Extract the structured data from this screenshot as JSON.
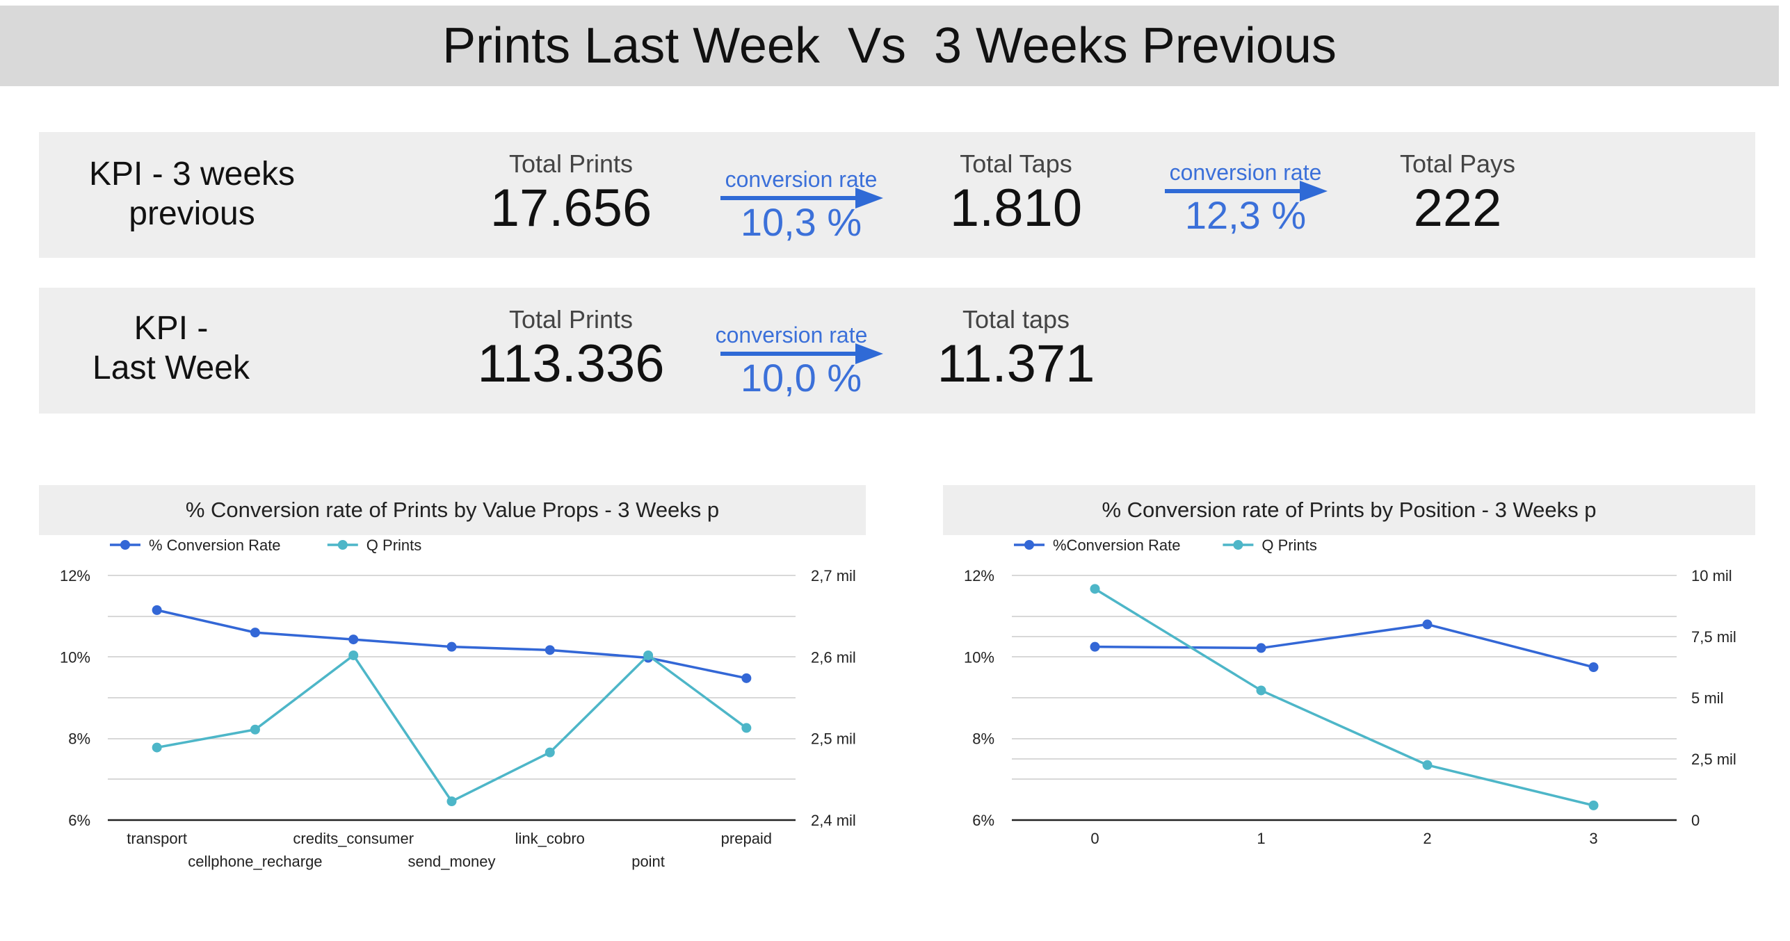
{
  "page": {
    "title": "Prints Last Week  Vs  3 Weeks Previous"
  },
  "kpi_previous": {
    "heading": "KPI - 3 weeks\nprevious",
    "total_prints_label": "Total Prints",
    "total_prints_value": "17.656",
    "conv1_label": "conversion rate",
    "conv1_value": "10,3 %",
    "total_taps_label": "Total Taps",
    "total_taps_value": "1.810",
    "conv2_label": "conversion rate",
    "conv2_value": "12,3 %",
    "total_pays_label": "Total Pays",
    "total_pays_value": "222"
  },
  "kpi_last_week": {
    "heading": "KPI  -\nLast Week",
    "total_prints_label": "Total Prints",
    "total_prints_value": "113.336",
    "conv_label": "conversion rate",
    "conv_value": "10,0 %",
    "total_taps_label": "Total taps",
    "total_taps_value": "11.371"
  },
  "colors": {
    "conversion_series": "#3367d6",
    "prints_series": "#4db6c8",
    "accent_blue": "#3b70d9",
    "band_gray": "#eeeeee",
    "title_gray": "#d9d9d9"
  },
  "chart_data": [
    {
      "type": "line",
      "title": "% Conversion rate of Prints by Value Props - 3 Weeks p",
      "legend_position": "top-left",
      "grid": true,
      "categories": [
        "transport",
        "cellphone_recharge",
        "credits_consumer",
        "send_money",
        "link_cobro",
        "point",
        "prepaid"
      ],
      "series": [
        {
          "name": "% Conversion Rate",
          "axis": "left",
          "values": [
            11.15,
            10.6,
            10.43,
            10.25,
            10.17,
            9.98,
            9.48
          ]
        },
        {
          "name": "Q Prints",
          "axis": "right",
          "values": [
            2.489,
            2.511,
            2.602,
            2.423,
            2.483,
            2.602,
            2.513
          ]
        }
      ],
      "y_left": {
        "ylim": [
          6,
          12
        ],
        "ticks": [
          6,
          8,
          10,
          12
        ],
        "tick_labels": [
          "6%",
          "8%",
          "10%",
          "12%"
        ]
      },
      "y_right": {
        "ylim": [
          2.4,
          2.7
        ],
        "ticks": [
          2.4,
          2.5,
          2.6,
          2.7
        ],
        "tick_labels": [
          "2,4 mil",
          "2,5 mil",
          "2,6 mil",
          "2,7 mil"
        ]
      }
    },
    {
      "type": "line",
      "title": "% Conversion rate of Prints by Position - 3 Weeks p",
      "legend_position": "top-left",
      "grid": true,
      "categories": [
        "0",
        "1",
        "2",
        "3"
      ],
      "series": [
        {
          "name": "%Conversion Rate",
          "axis": "left",
          "values": [
            10.25,
            10.22,
            10.8,
            9.75
          ]
        },
        {
          "name": "Q Prints",
          "axis": "right",
          "values": [
            9.45,
            5.3,
            2.25,
            0.6
          ]
        }
      ],
      "y_left": {
        "ylim": [
          6,
          12
        ],
        "ticks": [
          6,
          8,
          10,
          12
        ],
        "tick_labels": [
          "6%",
          "8%",
          "10%",
          "12%"
        ]
      },
      "y_right": {
        "ylim": [
          0,
          10
        ],
        "ticks": [
          0,
          2.5,
          5,
          7.5,
          10
        ],
        "tick_labels": [
          "0",
          "2,5 mil",
          "5 mil",
          "7,5 mil",
          "10 mil"
        ]
      }
    }
  ]
}
